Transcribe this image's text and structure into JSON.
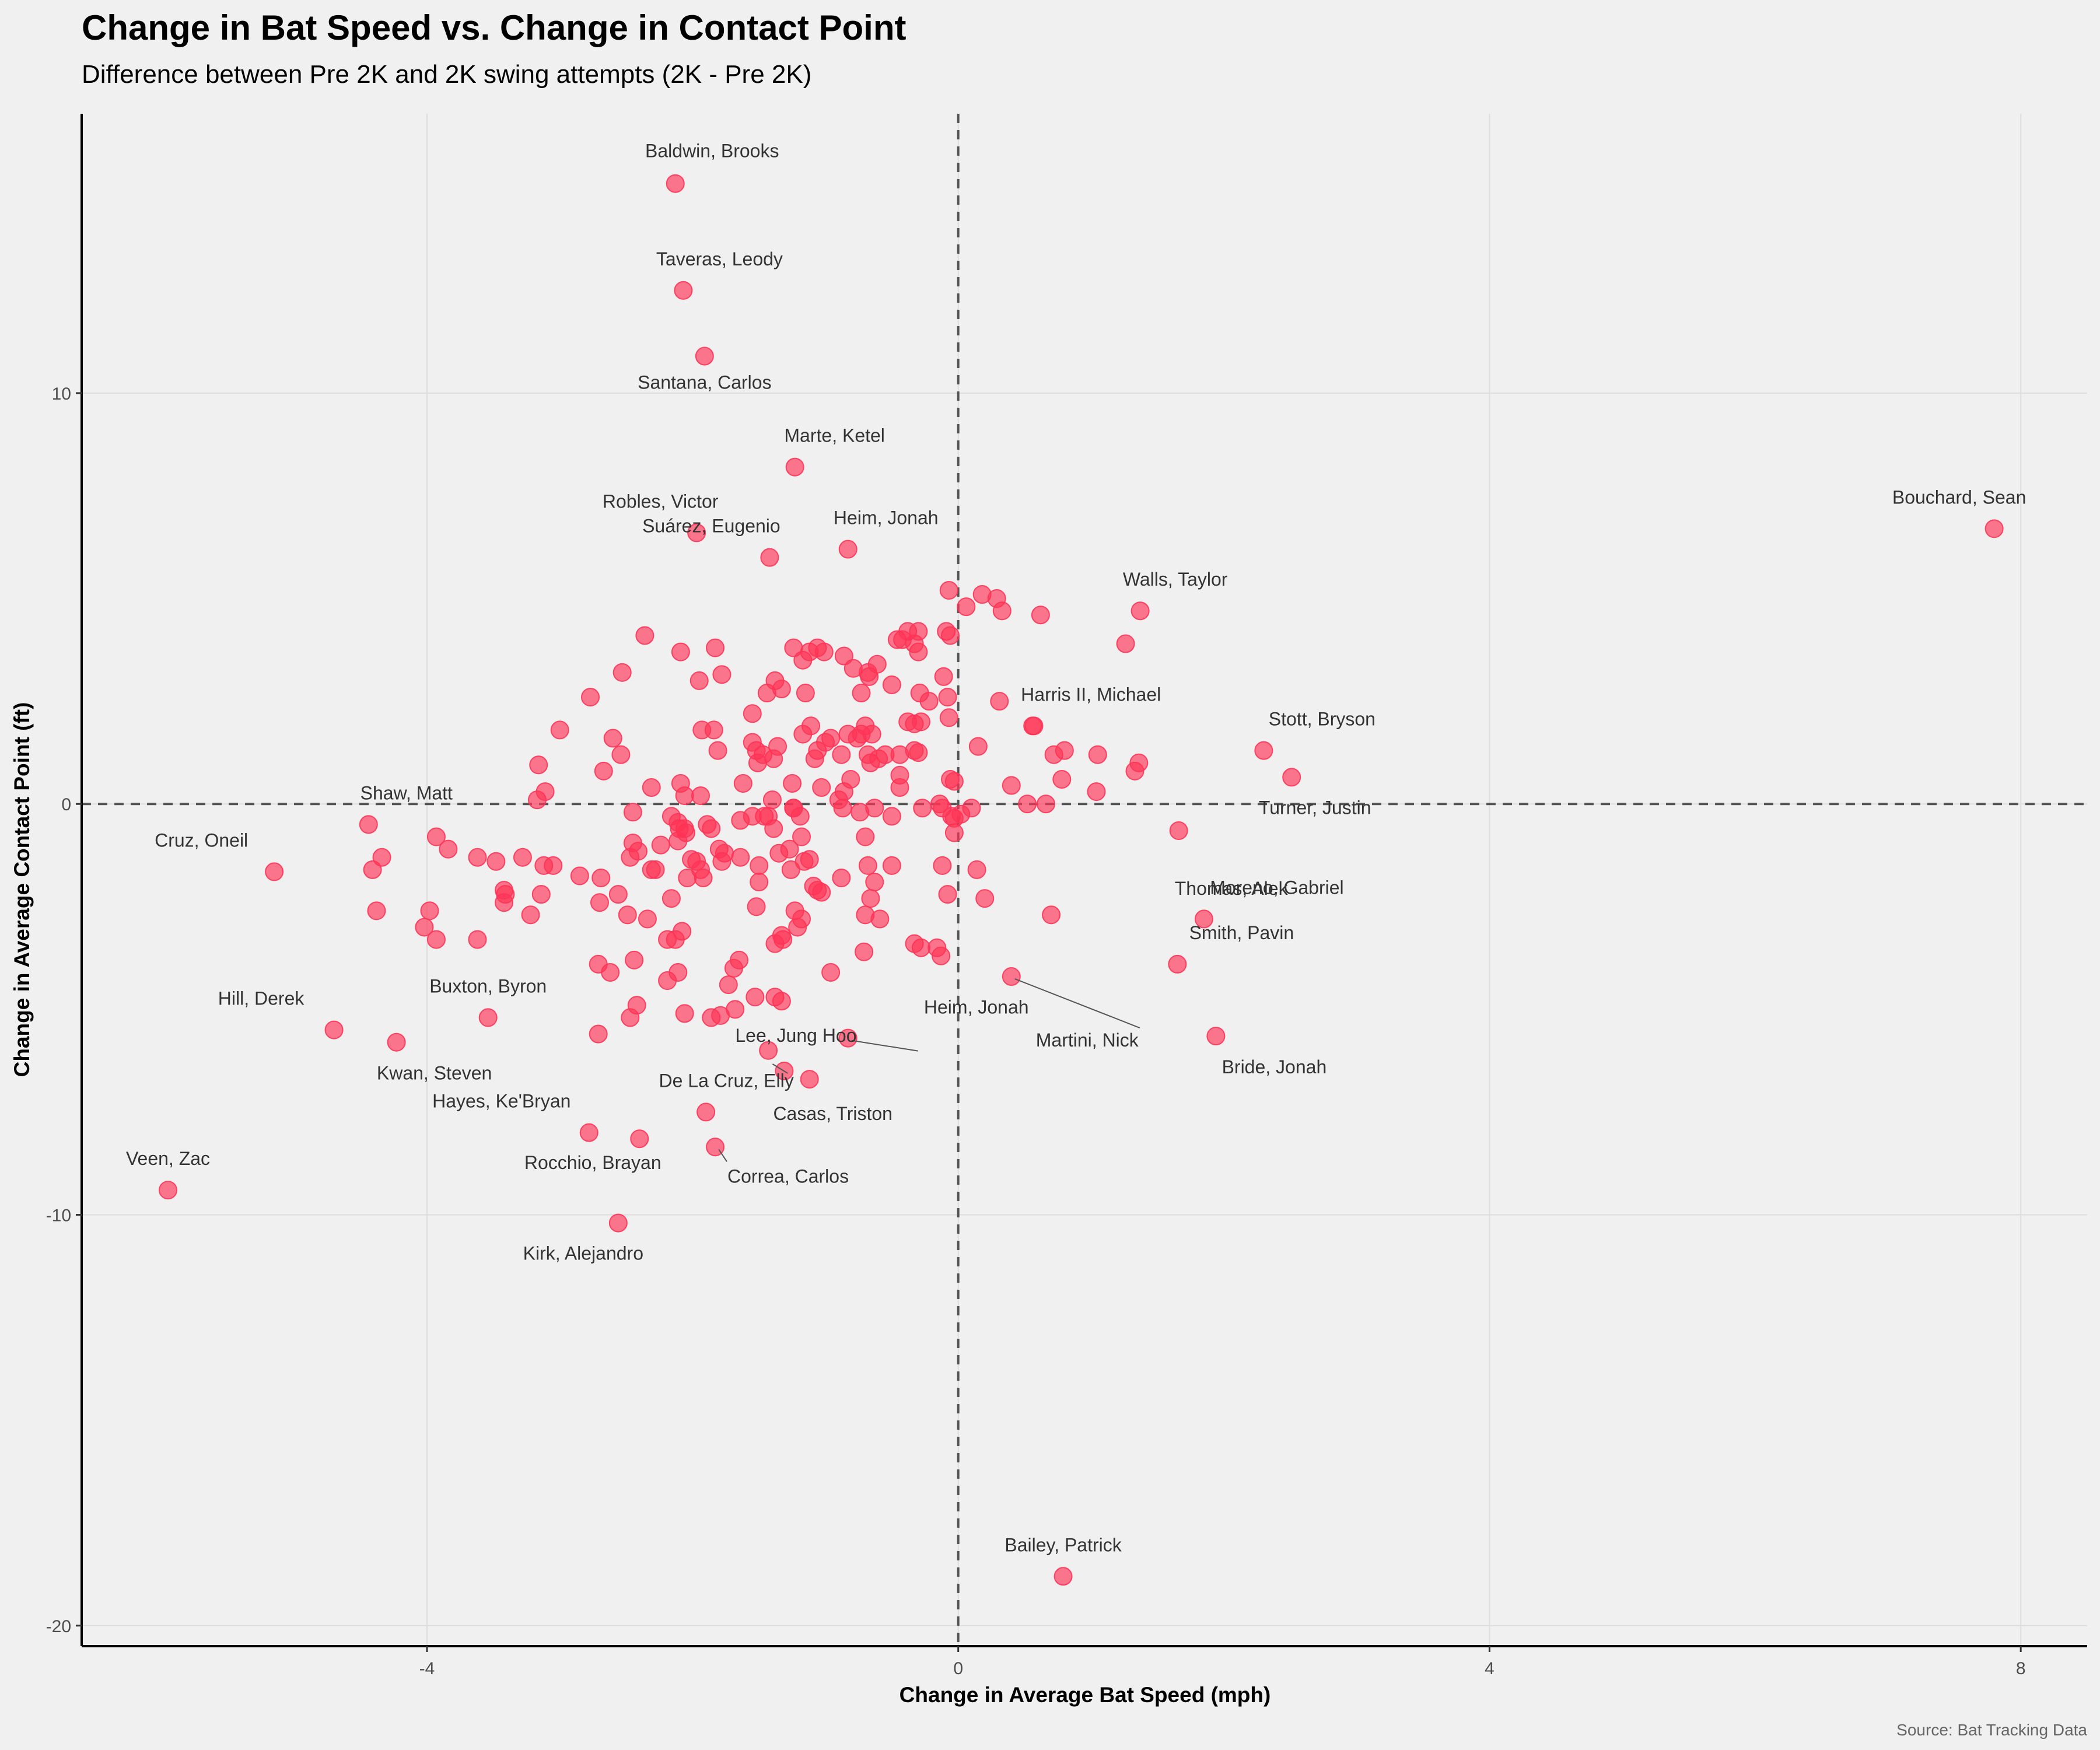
{
  "colors": {
    "background": "#f0f0f0",
    "point": "#ff3355",
    "grid": "#dddddd",
    "reference_line": "#555555",
    "label": "#333333"
  },
  "chart_data": {
    "type": "scatter",
    "title": "Change in Bat Speed vs. Change in Contact Point",
    "subtitle": "Difference between Pre 2K and 2K swing attempts (2K - Pre 2K)",
    "xlabel": "Change in Average Bat Speed (mph)",
    "ylabel": "Change in Average Contact Point (ft)",
    "caption": "Source: Bat Tracking Data",
    "xlim": [
      -6.6,
      8.5
    ],
    "ylim": [
      -20.5,
      16.8
    ],
    "xticks": [
      -4,
      0,
      4,
      8
    ],
    "yticks": [
      -20,
      -10,
      0,
      10
    ],
    "xtick_labels": [
      "-4",
      "0",
      "4",
      "8"
    ],
    "ytick_labels": [
      "-20",
      "-10",
      "0",
      "10"
    ],
    "reference_lines": {
      "x": 0,
      "y": 0,
      "style": "dashed"
    },
    "grid": true,
    "labeled_points": [
      {
        "name": "Baldwin, Brooks",
        "x": -2.13,
        "y": 15.1
      },
      {
        "name": "Taveras, Leody",
        "x": -2.07,
        "y": 12.5
      },
      {
        "name": "Santana, Carlos",
        "x": -1.91,
        "y": 10.9
      },
      {
        "name": "Marte, Ketel",
        "x": -1.23,
        "y": 8.2
      },
      {
        "name": "Robles, Victor",
        "x": -1.97,
        "y": 6.6
      },
      {
        "name": "Heim, Jonah",
        "x": -0.83,
        "y": 6.2
      },
      {
        "name": "Suárez, Eugenio",
        "x": -1.42,
        "y": 6.0
      },
      {
        "name": "Bouchard, Sean",
        "x": 7.8,
        "y": 6.7
      },
      {
        "name": "Walls, Taylor",
        "x": 1.37,
        "y": 4.7
      },
      {
        "name": "Harris II, Michael",
        "x": 0.56,
        "y": 1.9
      },
      {
        "name": "Stott, Bryson",
        "x": 2.3,
        "y": 1.3
      },
      {
        "name": "Turner, Justin",
        "x": 2.51,
        "y": 0.65
      },
      {
        "name": "Thomas, Alek",
        "x": 1.66,
        "y": -0.65
      },
      {
        "name": "Shaw, Matt",
        "x": -4.44,
        "y": -0.5
      },
      {
        "name": "Cruz, Oneil",
        "x": -5.15,
        "y": -1.65
      },
      {
        "name": "Moreno, Gabriel",
        "x": 1.85,
        "y": -2.8
      },
      {
        "name": "Smith, Pavin",
        "x": 1.65,
        "y": -3.9
      },
      {
        "name": "Martini, Nick",
        "x": 0.4,
        "y": -4.2
      },
      {
        "name": "Heim, Jonah",
        "x": -0.83,
        "y": -5.7
      },
      {
        "name": "Bride, Jonah",
        "x": 1.94,
        "y": -5.65
      },
      {
        "name": "Hill, Derek",
        "x": -4.7,
        "y": -5.5
      },
      {
        "name": "Kwan, Steven",
        "x": -4.23,
        "y": -5.8
      },
      {
        "name": "Buxton, Byron",
        "x": -3.54,
        "y": -5.2
      },
      {
        "name": "Lee, Jung Hoo",
        "x": -1.31,
        "y": -6.5
      },
      {
        "name": "Casas, Triston",
        "x": -1.12,
        "y": -6.7
      },
      {
        "name": "De La Cruz, Elly",
        "x": -1.9,
        "y": -7.5
      },
      {
        "name": "Hayes, Ke'Bryan",
        "x": -2.78,
        "y": -8.0
      },
      {
        "name": "Rocchio, Brayan",
        "x": -2.4,
        "y": -8.15
      },
      {
        "name": "Correa, Carlos",
        "x": -1.83,
        "y": -8.35
      },
      {
        "name": "Veen, Zac",
        "x": -5.95,
        "y": -9.4
      },
      {
        "name": "Kirk, Alejandro",
        "x": -2.56,
        "y": -10.2
      },
      {
        "name": "Bailey, Patrick",
        "x": 0.79,
        "y": -18.8
      }
    ],
    "points": [
      [
        -2.36,
        4.1
      ],
      [
        -2.09,
        3.7
      ],
      [
        -1.83,
        3.8
      ],
      [
        -1.78,
        3.15
      ],
      [
        -1.95,
        3.0
      ],
      [
        -2.53,
        3.2
      ],
      [
        -2.77,
        2.6
      ],
      [
        -3.0,
        1.8
      ],
      [
        -2.6,
        1.6
      ],
      [
        -2.54,
        1.2
      ],
      [
        -2.67,
        0.8
      ],
      [
        -3.16,
        0.95
      ],
      [
        -3.11,
        0.3
      ],
      [
        -3.17,
        0.1
      ],
      [
        -2.31,
        0.4
      ],
      [
        -2.09,
        0.5
      ],
      [
        -2.06,
        0.2
      ],
      [
        -1.94,
        0.2
      ],
      [
        -1.84,
        1.8
      ],
      [
        -1.81,
        1.3
      ],
      [
        -1.93,
        1.8
      ],
      [
        -1.62,
        0.5
      ],
      [
        -1.55,
        2.2
      ],
      [
        -1.55,
        1.5
      ],
      [
        -1.52,
        1.3
      ],
      [
        -1.47,
        1.2
      ],
      [
        -1.51,
        1.0
      ],
      [
        -1.39,
        1.1
      ],
      [
        -1.36,
        1.4
      ],
      [
        -1.44,
        2.7
      ],
      [
        -1.38,
        3.0
      ],
      [
        -1.33,
        2.8
      ],
      [
        -1.24,
        3.8
      ],
      [
        -1.17,
        3.5
      ],
      [
        -1.12,
        3.7
      ],
      [
        -1.06,
        3.8
      ],
      [
        -1.01,
        3.7
      ],
      [
        -1.15,
        2.7
      ],
      [
        -1.17,
        1.7
      ],
      [
        -1.11,
        1.9
      ],
      [
        -1.0,
        1.5
      ],
      [
        -0.96,
        1.6
      ],
      [
        -0.86,
        3.6
      ],
      [
        -0.79,
        3.3
      ],
      [
        -0.73,
        2.7
      ],
      [
        -0.68,
        3.2
      ],
      [
        -0.67,
        3.1
      ],
      [
        -0.61,
        3.4
      ],
      [
        -0.46,
        4.0
      ],
      [
        -0.42,
        4.0
      ],
      [
        -0.38,
        4.2
      ],
      [
        -0.3,
        4.2
      ],
      [
        -0.33,
        3.9
      ],
      [
        -0.3,
        3.7
      ],
      [
        -0.5,
        2.9
      ],
      [
        -0.29,
        2.7
      ],
      [
        -0.22,
        2.5
      ],
      [
        -0.38,
        2.0
      ],
      [
        -0.33,
        1.95
      ],
      [
        -0.28,
        2.0
      ],
      [
        -0.7,
        1.9
      ],
      [
        -0.73,
        1.7
      ],
      [
        -0.65,
        1.7
      ],
      [
        -0.76,
        1.6
      ],
      [
        -0.83,
        1.7
      ],
      [
        -0.88,
        1.2
      ],
      [
        -0.68,
        1.2
      ],
      [
        -0.6,
        1.1
      ],
      [
        -0.55,
        1.2
      ],
      [
        -0.44,
        1.2
      ],
      [
        -0.33,
        1.3
      ],
      [
        -0.3,
        1.25
      ],
      [
        -0.66,
        1.0
      ],
      [
        -0.81,
        0.6
      ],
      [
        -0.44,
        0.7
      ],
      [
        -0.44,
        0.4
      ],
      [
        -0.86,
        0.3
      ],
      [
        -1.03,
        0.4
      ],
      [
        -1.06,
        1.3
      ],
      [
        -1.08,
        1.1
      ],
      [
        -1.25,
        0.5
      ],
      [
        -1.4,
        0.1
      ],
      [
        -1.24,
        -0.1
      ],
      [
        -1.19,
        -0.3
      ],
      [
        -1.43,
        -0.3
      ],
      [
        -1.39,
        -0.6
      ],
      [
        -1.55,
        -0.3
      ],
      [
        -1.64,
        -0.4
      ],
      [
        -1.89,
        -0.5
      ],
      [
        -1.86,
        -0.6
      ],
      [
        -2.06,
        -0.6
      ],
      [
        -2.05,
        -0.7
      ],
      [
        -2.1,
        -0.6
      ],
      [
        -2.16,
        -0.3
      ],
      [
        -2.11,
        -0.45
      ],
      [
        -2.45,
        -0.2
      ],
      [
        -2.11,
        -0.9
      ],
      [
        -2.24,
        -1.0
      ],
      [
        -2.28,
        -1.6
      ],
      [
        -2.47,
        -1.3
      ],
      [
        -2.41,
        -1.15
      ],
      [
        -2.45,
        -0.95
      ],
      [
        -2.69,
        -1.8
      ],
      [
        -2.85,
        -1.75
      ],
      [
        -2.01,
        -1.35
      ],
      [
        -2.04,
        -1.8
      ],
      [
        -1.97,
        -1.4
      ],
      [
        -1.94,
        -1.6
      ],
      [
        -1.92,
        -1.8
      ],
      [
        -1.76,
        -1.2
      ],
      [
        -1.78,
        -1.4
      ],
      [
        -1.5,
        -1.5
      ],
      [
        -1.5,
        -1.9
      ],
      [
        -1.35,
        -1.2
      ],
      [
        -1.16,
        -1.4
      ],
      [
        -1.12,
        -1.35
      ],
      [
        -1.18,
        -0.8
      ],
      [
        -1.27,
        -1.1
      ],
      [
        -1.09,
        -2.0
      ],
      [
        -1.06,
        -2.1
      ],
      [
        -1.03,
        -2.15
      ],
      [
        -0.88,
        -1.8
      ],
      [
        -0.63,
        -1.9
      ],
      [
        -0.66,
        -2.3
      ],
      [
        -0.7,
        -2.7
      ],
      [
        -0.7,
        -0.8
      ],
      [
        -0.63,
        -0.1
      ],
      [
        -0.74,
        -0.2
      ],
      [
        -0.87,
        -0.1
      ],
      [
        -0.9,
        0.1
      ],
      [
        -0.5,
        -0.3
      ],
      [
        -0.5,
        -1.5
      ],
      [
        -0.68,
        -1.5
      ],
      [
        -0.71,
        -3.6
      ],
      [
        -0.59,
        -2.8
      ],
      [
        -0.28,
        -3.5
      ],
      [
        -0.16,
        -3.5
      ],
      [
        -0.13,
        -3.7
      ],
      [
        -0.33,
        -3.4
      ],
      [
        -0.27,
        -0.1
      ],
      [
        -0.05,
        -0.3
      ],
      [
        -0.12,
        -0.1
      ],
      [
        -0.14,
        0.0
      ],
      [
        -0.03,
        -0.7
      ],
      [
        -0.03,
        -0.35
      ],
      [
        -0.08,
        -2.2
      ],
      [
        -0.12,
        -1.5
      ],
      [
        -0.06,
        0.6
      ],
      [
        -0.03,
        0.55
      ],
      [
        -0.07,
        2.1
      ],
      [
        -0.08,
        2.6
      ],
      [
        -0.11,
        3.1
      ],
      [
        -0.06,
        4.1
      ],
      [
        -0.09,
        4.2
      ],
      [
        -0.07,
        5.2
      ],
      [
        0.06,
        4.8
      ],
      [
        0.18,
        5.1
      ],
      [
        0.29,
        5.0
      ],
      [
        0.33,
        4.7
      ],
      [
        0.62,
        4.6
      ],
      [
        0.15,
        1.4
      ],
      [
        0.31,
        2.5
      ],
      [
        0.57,
        1.9
      ],
      [
        0.72,
        1.2
      ],
      [
        0.8,
        1.3
      ],
      [
        1.05,
        1.2
      ],
      [
        1.26,
        3.9
      ],
      [
        1.33,
        0.8
      ],
      [
        1.36,
        1.0
      ],
      [
        1.04,
        0.3
      ],
      [
        0.78,
        0.6
      ],
      [
        0.66,
        0.0
      ],
      [
        0.52,
        0.0
      ],
      [
        0.4,
        0.45
      ],
      [
        0.1,
        -0.1
      ],
      [
        0.02,
        -0.25
      ],
      [
        0.14,
        -1.6
      ],
      [
        0.2,
        -2.3
      ],
      [
        0.7,
        -2.7
      ],
      [
        -1.46,
        -0.3
      ],
      [
        -1.52,
        -2.5
      ],
      [
        -1.64,
        -1.3
      ],
      [
        -1.8,
        -1.1
      ],
      [
        -1.65,
        -3.8
      ],
      [
        -1.69,
        -4.0
      ],
      [
        -1.73,
        -4.4
      ],
      [
        -1.53,
        -4.7
      ],
      [
        -1.68,
        -5.0
      ],
      [
        -1.86,
        -5.2
      ],
      [
        -1.79,
        -5.15
      ],
      [
        -2.06,
        -5.1
      ],
      [
        -2.11,
        -4.1
      ],
      [
        -2.08,
        -3.1
      ],
      [
        -2.13,
        -3.3
      ],
      [
        -2.16,
        -2.3
      ],
      [
        -2.34,
        -2.8
      ],
      [
        -2.49,
        -2.7
      ],
      [
        -2.56,
        -2.2
      ],
      [
        -2.7,
        -2.4
      ],
      [
        -2.71,
        -3.9
      ],
      [
        -2.44,
        -3.8
      ],
      [
        -2.62,
        -4.1
      ],
      [
        -2.42,
        -4.9
      ],
      [
        -2.47,
        -5.2
      ],
      [
        -2.71,
        -5.6
      ],
      [
        -2.19,
        -3.3
      ],
      [
        -2.19,
        -4.3
      ],
      [
        -2.31,
        -1.6
      ],
      [
        -1.32,
        -3.3
      ],
      [
        -1.33,
        -3.2
      ],
      [
        -1.21,
        -3.0
      ],
      [
        -1.18,
        -2.8
      ],
      [
        -1.38,
        -3.4
      ],
      [
        -1.38,
        -4.7
      ],
      [
        -1.26,
        -1.6
      ],
      [
        -1.23,
        -2.6
      ],
      [
        -1.33,
        -4.8
      ],
      [
        -1.43,
        -6.0
      ],
      [
        -0.96,
        -4.1
      ],
      [
        -3.28,
        -1.3
      ],
      [
        -3.05,
        -1.5
      ],
      [
        -3.12,
        -1.5
      ],
      [
        -3.22,
        -2.7
      ],
      [
        -3.14,
        -2.2
      ],
      [
        -3.42,
        -2.1
      ],
      [
        -3.41,
        -2.2
      ],
      [
        -3.42,
        -2.4
      ],
      [
        -3.48,
        -1.4
      ],
      [
        -3.62,
        -1.3
      ],
      [
        -3.84,
        -1.1
      ],
      [
        -3.93,
        -0.8
      ],
      [
        -3.98,
        -2.6
      ],
      [
        -4.02,
        -3.0
      ],
      [
        -3.93,
        -3.3
      ],
      [
        -3.62,
        -3.3
      ],
      [
        -4.38,
        -2.6
      ],
      [
        -4.34,
        -1.3
      ],
      [
        -4.41,
        -1.6
      ],
      [
        -1.24,
        -0.1
      ]
    ]
  }
}
